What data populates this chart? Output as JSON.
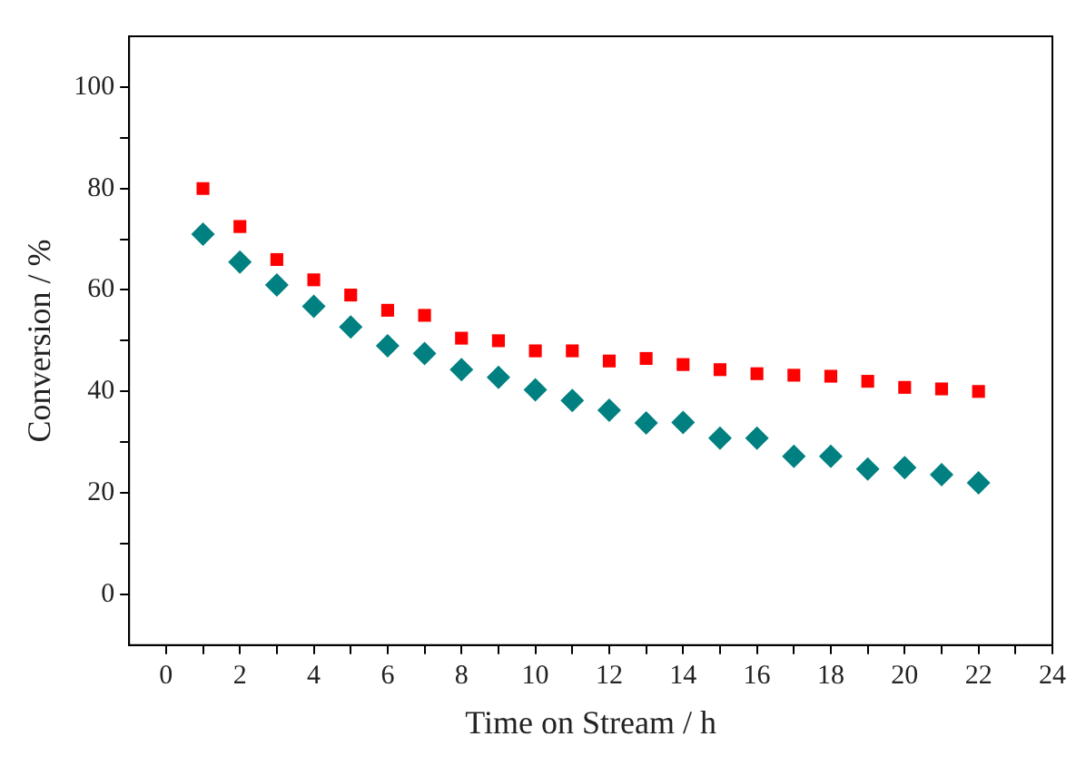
{
  "chart_data": {
    "type": "scatter",
    "xlabel": "Time on Stream / h",
    "ylabel": "Conversion / %",
    "x": [
      1,
      2,
      3,
      4,
      5,
      6,
      7,
      8,
      9,
      10,
      11,
      12,
      13,
      14,
      15,
      16,
      17,
      18,
      19,
      20,
      21,
      22
    ],
    "series": [
      {
        "color": "#ff0000",
        "marker": "square",
        "values": [
          80,
          72.5,
          66,
          62,
          59,
          56,
          55,
          50.5,
          50,
          48,
          48,
          46,
          46.5,
          45.3,
          44.3,
          43.5,
          43.2,
          43,
          42,
          40.8,
          40.5,
          40
        ]
      },
      {
        "color": "#008080",
        "marker": "diamond",
        "values": [
          71,
          65.5,
          61,
          56.8,
          52.7,
          49,
          47.5,
          44.3,
          42.8,
          40.3,
          38.2,
          36.3,
          33.8,
          33.9,
          30.8,
          30.8,
          27.2,
          27.2,
          24.7,
          25,
          23.6,
          22
        ]
      }
    ],
    "xlim": [
      -1,
      24
    ],
    "xticks": [
      0,
      {
        "value": 1,
        "label": null
      },
      2,
      {
        "value": 3,
        "label": null
      },
      4,
      {
        "value": 5,
        "label": null
      },
      6,
      {
        "value": 7,
        "label": null
      },
      8,
      {
        "value": 9,
        "label": null
      },
      10,
      {
        "value": 11,
        "label": null
      },
      12,
      {
        "value": 13,
        "label": null
      },
      14,
      {
        "value": 15,
        "label": null
      },
      16,
      {
        "value": 17,
        "label": null
      },
      18,
      {
        "value": 19,
        "label": null
      },
      20,
      {
        "value": 21,
        "label": null
      },
      22,
      {
        "value": 23,
        "label": null
      },
      24
    ],
    "ylim": [
      -10,
      110
    ],
    "yticks": [
      0,
      {
        "value": 10,
        "label": null
      },
      20,
      {
        "value": 30,
        "label": null
      },
      40,
      {
        "value": 50,
        "label": null
      },
      60,
      {
        "value": 70,
        "label": null
      },
      80,
      {
        "value": 90,
        "label": null
      },
      100
    ],
    "grid": false,
    "legend": false
  }
}
